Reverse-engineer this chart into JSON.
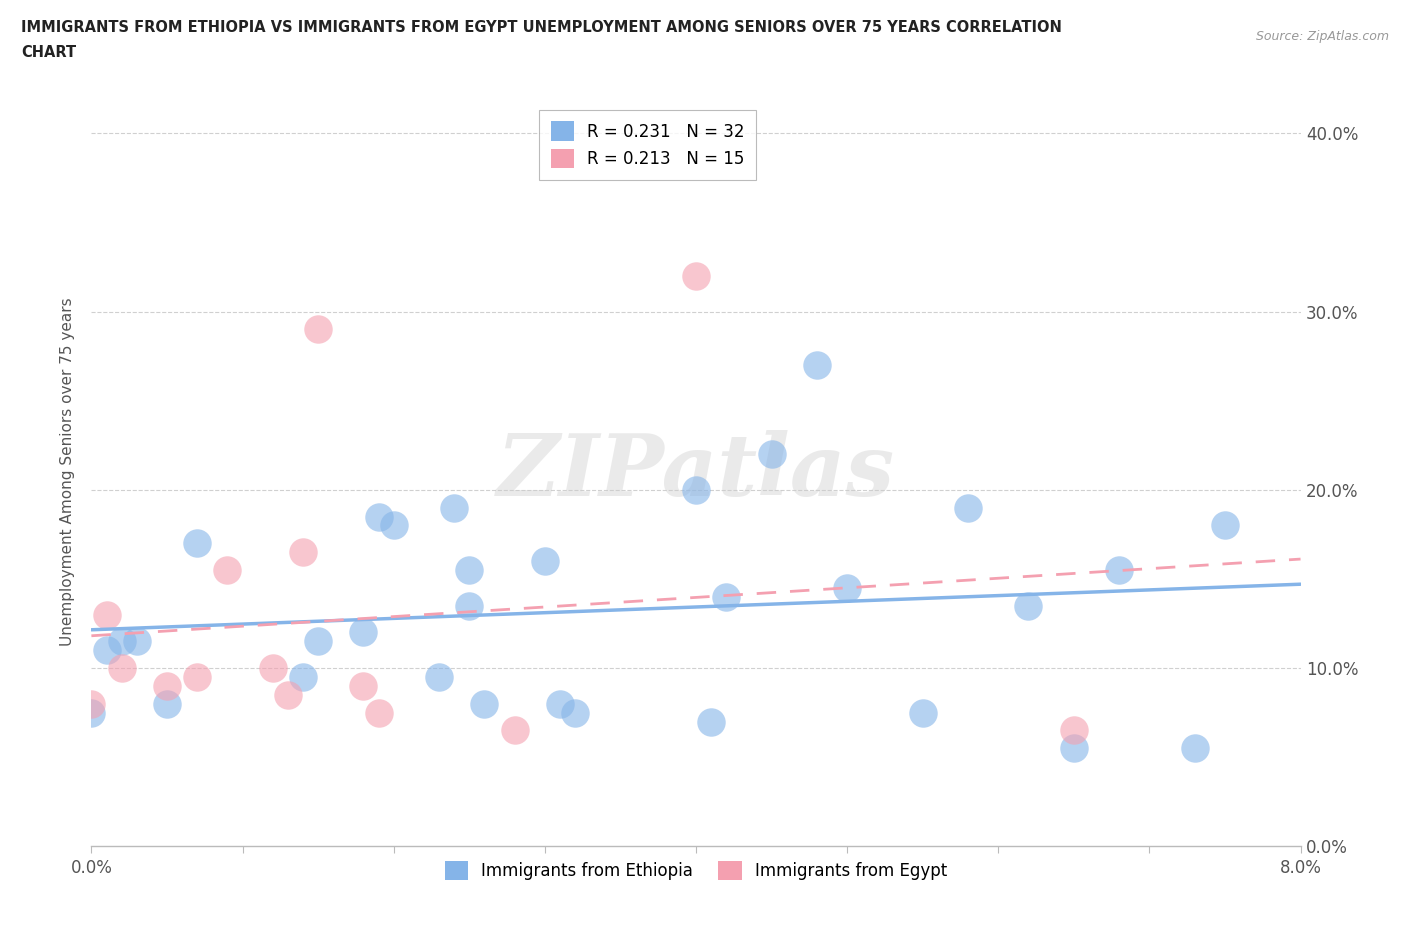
{
  "title_line1": "IMMIGRANTS FROM ETHIOPIA VS IMMIGRANTS FROM EGYPT UNEMPLOYMENT AMONG SENIORS OVER 75 YEARS CORRELATION",
  "title_line2": "CHART",
  "source": "Source: ZipAtlas.com",
  "ylabel": "Unemployment Among Seniors over 75 years",
  "xlim": [
    0.0,
    0.08
  ],
  "ylim": [
    0.0,
    0.42
  ],
  "yticks": [
    0.0,
    0.1,
    0.2,
    0.3,
    0.4
  ],
  "ytick_labels": [
    "0.0%",
    "10.0%",
    "20.0%",
    "30.0%",
    "40.0%"
  ],
  "xtick_left_label": "0.0%",
  "xtick_right_label": "8.0%",
  "ethiopia_R": 0.231,
  "ethiopia_N": 32,
  "egypt_R": 0.213,
  "egypt_N": 15,
  "ethiopia_color": "#85b4e8",
  "egypt_color": "#f4a0b0",
  "ethiopia_scatter_x": [
    0.0,
    0.001,
    0.002,
    0.003,
    0.005,
    0.007,
    0.014,
    0.015,
    0.018,
    0.019,
    0.02,
    0.023,
    0.024,
    0.025,
    0.025,
    0.026,
    0.03,
    0.031,
    0.032,
    0.04,
    0.041,
    0.042,
    0.045,
    0.048,
    0.05,
    0.055,
    0.058,
    0.062,
    0.065,
    0.068,
    0.073,
    0.075
  ],
  "ethiopia_scatter_y": [
    0.075,
    0.11,
    0.115,
    0.115,
    0.08,
    0.17,
    0.095,
    0.115,
    0.12,
    0.185,
    0.18,
    0.095,
    0.19,
    0.155,
    0.135,
    0.08,
    0.16,
    0.08,
    0.075,
    0.2,
    0.07,
    0.14,
    0.22,
    0.27,
    0.145,
    0.075,
    0.19,
    0.135,
    0.055,
    0.155,
    0.055,
    0.18
  ],
  "egypt_scatter_x": [
    0.0,
    0.001,
    0.002,
    0.005,
    0.007,
    0.009,
    0.012,
    0.013,
    0.014,
    0.015,
    0.018,
    0.019,
    0.028,
    0.04,
    0.065
  ],
  "egypt_scatter_y": [
    0.08,
    0.13,
    0.1,
    0.09,
    0.095,
    0.155,
    0.1,
    0.085,
    0.165,
    0.29,
    0.09,
    0.075,
    0.065,
    0.32,
    0.065
  ],
  "watermark": "ZIPatlas",
  "bg_color": "#ffffff",
  "grid_color": "#d0d0d0",
  "title_color": "#222222",
  "tick_label_color": "#555555"
}
